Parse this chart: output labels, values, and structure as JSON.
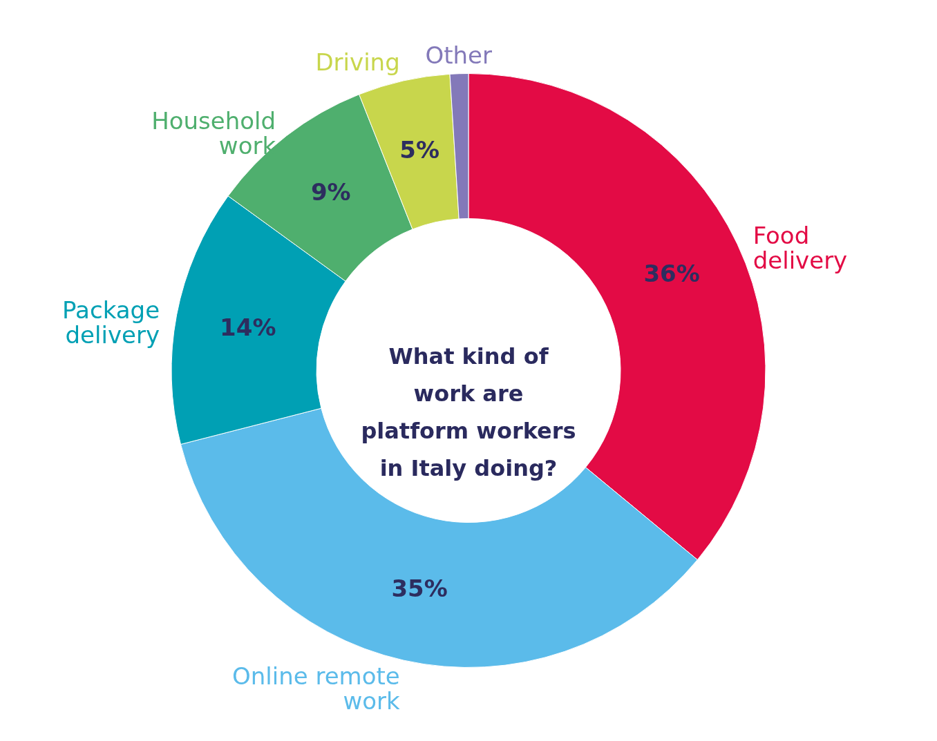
{
  "chart_data": {
    "type": "donut",
    "title": "What kind of work are platform workers in Italy doing?",
    "categories": [
      "Food delivery",
      "Online remote work",
      "Package delivery",
      "Household work",
      "Driving",
      "Other"
    ],
    "values": [
      36,
      35,
      14,
      9,
      5,
      1
    ],
    "colors": [
      "#e30b45",
      "#5bbbea",
      "#00a0b4",
      "#4faf6e",
      "#c8d64c",
      "#8379b9"
    ],
    "value_labels": [
      "36%",
      "35%",
      "14%",
      "9%",
      "5%",
      null
    ]
  }
}
